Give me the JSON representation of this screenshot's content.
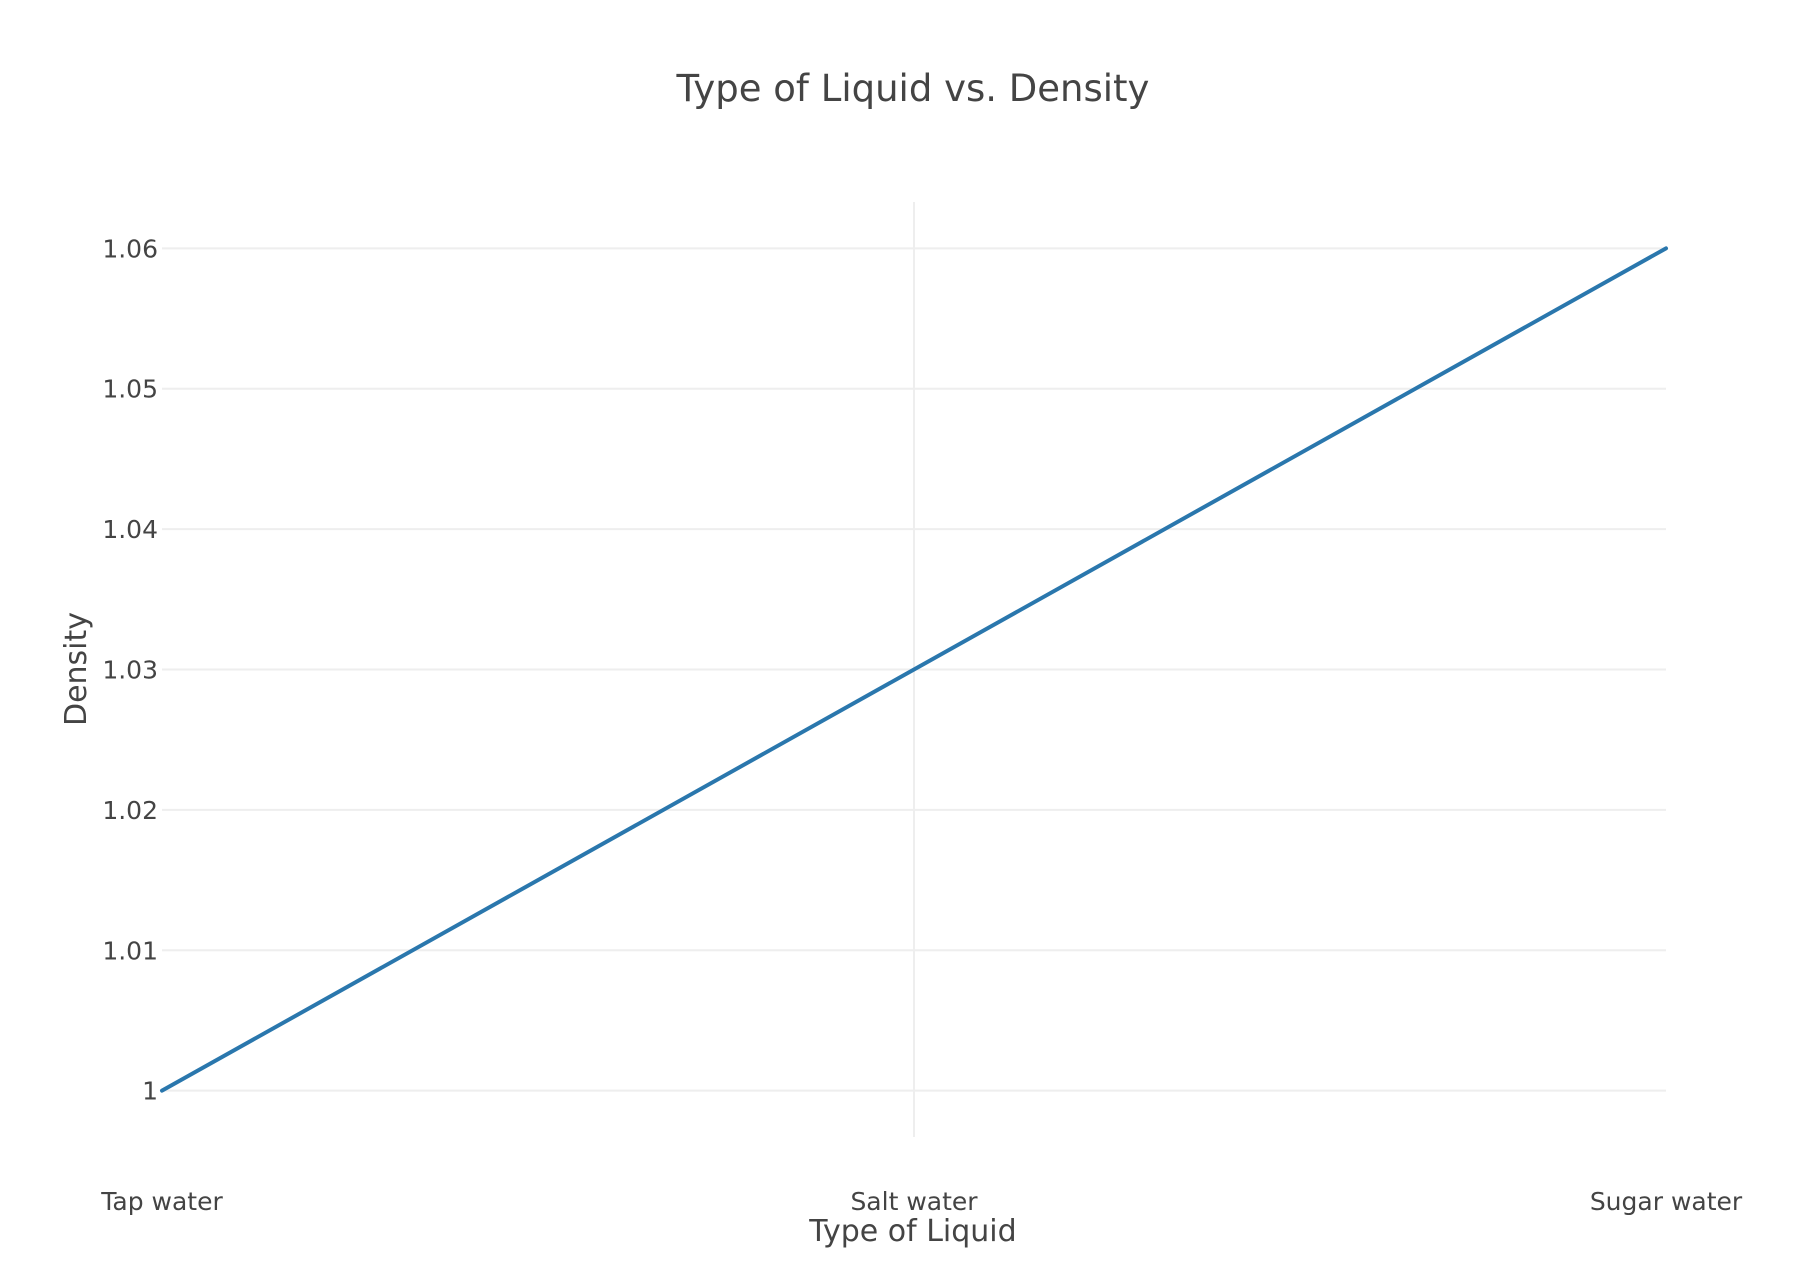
{
  "chart_data": {
    "type": "line",
    "title": "Type of Liquid vs. Density",
    "xlabel": "Type of Liquid",
    "ylabel": "Density",
    "categories": [
      "Tap water",
      "Salt water",
      "Sugar water"
    ],
    "series": [
      {
        "values": [
          1.0,
          1.03,
          1.06
        ],
        "color": "#2a77ad"
      }
    ],
    "y_ticks": [
      1,
      1.01,
      1.02,
      1.03,
      1.04,
      1.05,
      1.06
    ],
    "y_tick_labels": [
      "1",
      "1.01",
      "1.02",
      "1.03",
      "1.04",
      "1.05",
      "1.06"
    ],
    "ylim": [
      0.9967,
      1.0633
    ],
    "grid": true
  }
}
